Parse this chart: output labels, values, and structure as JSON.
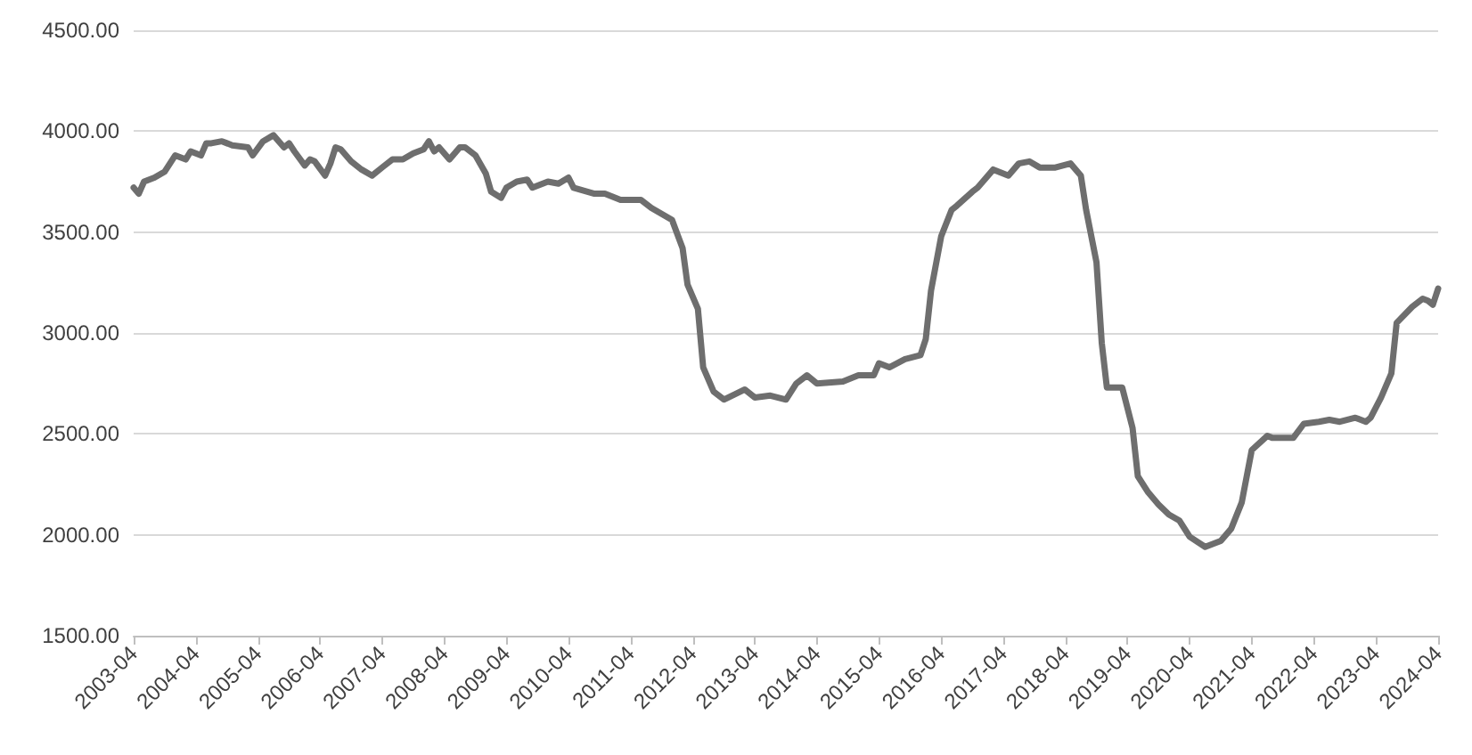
{
  "chart_data": {
    "type": "line",
    "x": [
      "2003-04",
      "2003-05",
      "2003-06",
      "2003-08",
      "2003-10",
      "2003-12",
      "2004-02",
      "2004-03",
      "2004-05",
      "2004-06",
      "2004-07",
      "2004-09",
      "2004-11",
      "2005-02",
      "2005-03",
      "2005-05",
      "2005-07",
      "2005-09",
      "2005-10",
      "2005-11",
      "2006-01",
      "2006-02",
      "2006-03",
      "2006-05",
      "2006-06",
      "2006-07",
      "2006-08",
      "2006-10",
      "2006-12",
      "2007-02",
      "2007-04",
      "2007-06",
      "2007-08",
      "2007-10",
      "2007-12",
      "2008-01",
      "2008-02",
      "2008-03",
      "2008-05",
      "2008-07",
      "2008-08",
      "2008-10",
      "2008-12",
      "2009-01",
      "2009-03",
      "2009-04",
      "2009-06",
      "2009-08",
      "2009-09",
      "2009-12",
      "2010-02",
      "2010-04",
      "2010-05",
      "2010-09",
      "2010-11",
      "2011-02",
      "2011-06",
      "2011-08",
      "2011-12",
      "2012-02",
      "2012-03",
      "2012-05",
      "2012-06",
      "2012-08",
      "2012-10",
      "2013-02",
      "2013-04",
      "2013-07",
      "2013-10",
      "2013-12",
      "2014-02",
      "2014-04",
      "2014-09",
      "2014-12",
      "2015-03",
      "2015-04",
      "2015-06",
      "2015-09",
      "2015-12",
      "2016-01",
      "2016-02",
      "2016-04",
      "2016-06",
      "2016-07",
      "2016-10",
      "2016-11",
      "2017-02",
      "2017-05",
      "2017-07",
      "2017-09",
      "2017-11",
      "2018-02",
      "2018-05",
      "2018-07",
      "2018-08",
      "2018-10",
      "2018-11",
      "2018-12",
      "2019-03",
      "2019-05",
      "2019-06",
      "2019-08",
      "2019-10",
      "2019-12",
      "2020-02",
      "2020-04",
      "2020-07",
      "2020-10",
      "2020-12",
      "2021-02",
      "2021-04",
      "2021-07",
      "2021-08",
      "2021-12",
      "2022-02",
      "2022-05",
      "2022-07",
      "2022-09",
      "2022-12",
      "2023-02",
      "2023-03",
      "2023-05",
      "2023-07",
      "2023-08",
      "2023-11",
      "2024-01",
      "2024-02",
      "2024-03",
      "2024-04"
    ],
    "series": [
      {
        "color": "#6e6e6e",
        "values": [
          3720,
          3690,
          3750,
          3770,
          3800,
          3880,
          3860,
          3900,
          3880,
          3940,
          3940,
          3950,
          3930,
          3920,
          3880,
          3950,
          3980,
          3920,
          3940,
          3900,
          3830,
          3860,
          3850,
          3780,
          3840,
          3920,
          3910,
          3850,
          3810,
          3780,
          3820,
          3860,
          3860,
          3890,
          3910,
          3950,
          3900,
          3920,
          3860,
          3920,
          3920,
          3880,
          3790,
          3700,
          3670,
          3720,
          3750,
          3760,
          3720,
          3750,
          3740,
          3770,
          3720,
          3690,
          3690,
          3660,
          3660,
          3620,
          3560,
          3420,
          3240,
          3120,
          2830,
          2710,
          2670,
          2720,
          2680,
          2690,
          2670,
          2750,
          2790,
          2750,
          2760,
          2790,
          2790,
          2850,
          2830,
          2870,
          2890,
          2970,
          3210,
          3480,
          3610,
          3630,
          3700,
          3720,
          3810,
          3780,
          3840,
          3850,
          3820,
          3820,
          3840,
          3780,
          3610,
          3350,
          2950,
          2730,
          2730,
          2530,
          2290,
          2210,
          2150,
          2100,
          2070,
          1990,
          1940,
          1970,
          2030,
          2160,
          2420,
          2490,
          2480,
          2480,
          2550,
          2560,
          2570,
          2560,
          2580,
          2560,
          2580,
          2680,
          2800,
          3050,
          3130,
          3170,
          3160,
          3140,
          3220
        ]
      }
    ],
    "xlim": [
      "2003-04",
      "2024-04"
    ],
    "xticks": [
      "2003-04",
      "2004-04",
      "2005-04",
      "2006-04",
      "2007-04",
      "2008-04",
      "2009-04",
      "2010-04",
      "2011-04",
      "2012-04",
      "2013-04",
      "2014-04",
      "2015-04",
      "2016-04",
      "2017-04",
      "2018-04",
      "2019-04",
      "2020-04",
      "2021-04",
      "2022-04",
      "2023-04",
      "2024-04"
    ],
    "ylim": [
      1500,
      4500
    ],
    "yticks": [
      {
        "value": 1500,
        "label": "1500.00"
      },
      {
        "value": 2000,
        "label": "2000.00"
      },
      {
        "value": 2500,
        "label": "2500.00"
      },
      {
        "value": 3000,
        "label": "3000.00"
      },
      {
        "value": 3500,
        "label": "3500.00"
      },
      {
        "value": 4000,
        "label": "4000.00"
      },
      {
        "value": 4500,
        "label": "4500.00"
      }
    ],
    "grid": "y",
    "marker": "none",
    "line_style": "solid"
  }
}
